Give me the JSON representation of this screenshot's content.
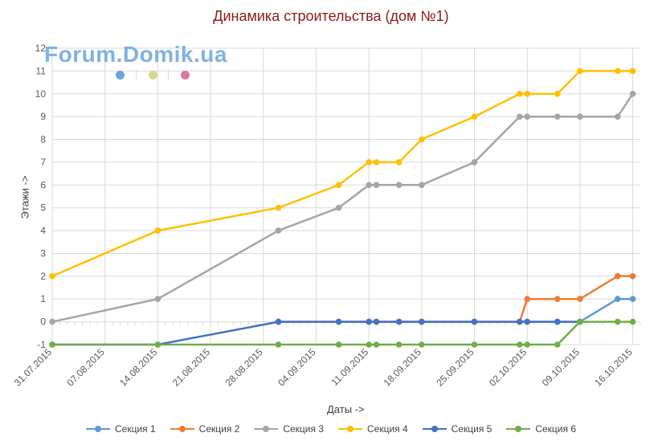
{
  "chart_data": {
    "type": "line",
    "title": "Динамика строительства (дом №1)",
    "xlabel": "Даты ->",
    "ylabel": "Этажи ->",
    "ylim": [
      -1,
      12
    ],
    "yticks": [
      -1,
      0,
      1,
      2,
      3,
      4,
      5,
      6,
      7,
      8,
      9,
      10,
      11,
      12
    ],
    "xlim": [
      "31.07.2015",
      "17.10.2015"
    ],
    "xticks": [
      "31.07.2015",
      "07.08.2015",
      "14.08.2015",
      "21.08.2015",
      "28.08.2015",
      "04.09.2015",
      "11.09.2015",
      "18.09.2015",
      "25.09.2015",
      "02.10.2015",
      "09.10.2015",
      "16.10.2015"
    ],
    "x": [
      "31.07.2015",
      "14.08.2015",
      "30.08.2015",
      "07.09.2015",
      "11.09.2015",
      "12.09.2015",
      "15.09.2015",
      "18.09.2015",
      "25.09.2015",
      "01.10.2015",
      "02.10.2015",
      "06.10.2015",
      "09.10.2015",
      "14.10.2015",
      "16.10.2015"
    ],
    "series": [
      {
        "name": "Секция 1",
        "color": "#5b9bd5",
        "values": [
          null,
          null,
          0,
          0,
          0,
          0,
          0,
          0,
          0,
          0,
          0,
          0,
          0,
          1,
          1
        ]
      },
      {
        "name": "Секция 2",
        "color": "#ed7d31",
        "values": [
          null,
          null,
          0,
          0,
          0,
          0,
          0,
          0,
          0,
          0,
          1,
          1,
          1,
          2,
          2
        ]
      },
      {
        "name": "Секция 3",
        "color": "#a5a5a5",
        "values": [
          0,
          1,
          4,
          5,
          6,
          6,
          6,
          6,
          7,
          9,
          9,
          9,
          9,
          9,
          10
        ]
      },
      {
        "name": "Секция 4",
        "color": "#ffc000",
        "values": [
          2,
          4,
          5,
          6,
          7,
          7,
          7,
          8,
          9,
          10,
          10,
          10,
          11,
          11,
          11
        ]
      },
      {
        "name": "Секция 5",
        "color": "#4472c4",
        "values": [
          -1,
          -1,
          0,
          0,
          0,
          0,
          0,
          0,
          0,
          0,
          0,
          0,
          0,
          null,
          null
        ]
      },
      {
        "name": "Секция 6",
        "color": "#70ad47",
        "values": [
          -1,
          -1,
          -1,
          -1,
          -1,
          -1,
          -1,
          -1,
          -1,
          -1,
          -1,
          -1,
          0,
          0,
          0
        ]
      }
    ],
    "grid": true,
    "legend": "bottom"
  },
  "watermark": {
    "text": "Forum.Domik.ua",
    "dot_colors": [
      "#6fa0d8",
      "#d6d88a",
      "#d87a98"
    ]
  }
}
